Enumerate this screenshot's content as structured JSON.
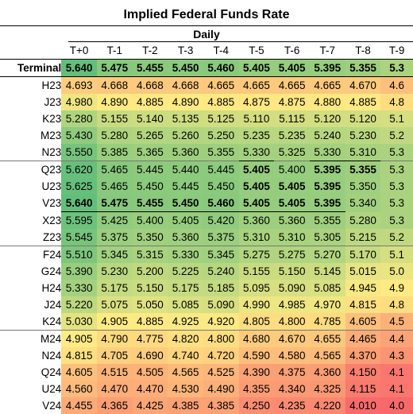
{
  "title": "Implied Federal Funds Rate",
  "subtitle": "Daily",
  "columns": [
    "T+0",
    "T-1",
    "T-2",
    "T-3",
    "T-4",
    "T-5",
    "T-6",
    "T-7",
    "T-8",
    "T-9"
  ],
  "rows": [
    {
      "label": "Terminal",
      "values": [
        "5.640",
        "5.475",
        "5.455",
        "5.450",
        "5.460",
        "5.405",
        "5.405",
        "5.395",
        "5.355",
        "5.3"
      ]
    },
    {
      "label": "H23",
      "values": [
        "4.693",
        "4.668",
        "4.668",
        "4.668",
        "4.665",
        "4.665",
        "4.665",
        "4.665",
        "4.670",
        "4.6"
      ]
    },
    {
      "label": "J23",
      "values": [
        "4.980",
        "4.890",
        "4.885",
        "4.890",
        "4.885",
        "4.875",
        "4.875",
        "4.880",
        "4.885",
        "4.8"
      ]
    },
    {
      "label": "K23",
      "values": [
        "5.280",
        "5.155",
        "5.140",
        "5.135",
        "5.125",
        "5.110",
        "5.115",
        "5.120",
        "5.120",
        "5.1"
      ]
    },
    {
      "label": "M23",
      "values": [
        "5.430",
        "5.280",
        "5.265",
        "5.260",
        "5.250",
        "5.235",
        "5.235",
        "5.240",
        "5.230",
        "5.2"
      ]
    },
    {
      "label": "N23",
      "values": [
        "5.550",
        "5.385",
        "5.365",
        "5.360",
        "5.355",
        "5.330",
        "5.325",
        "5.330",
        "5.310",
        "5.3"
      ]
    },
    {
      "label": "Q23",
      "values": [
        "5.620",
        "5.465",
        "5.445",
        "5.440",
        "5.445",
        "5.405",
        "5.400",
        "5.395",
        "5.355",
        "5.3"
      ]
    },
    {
      "label": "U23",
      "values": [
        "5.625",
        "5.465",
        "5.450",
        "5.445",
        "5.450",
        "5.405",
        "5.405",
        "5.395",
        "5.350",
        "5.3"
      ]
    },
    {
      "label": "V23",
      "values": [
        "5.640",
        "5.475",
        "5.455",
        "5.450",
        "5.460",
        "5.405",
        "5.405",
        "5.395",
        "5.340",
        "5.3"
      ]
    },
    {
      "label": "X23",
      "values": [
        "5.595",
        "5.425",
        "5.400",
        "5.405",
        "5.420",
        "5.360",
        "5.360",
        "5.355",
        "5.280",
        "5.3"
      ]
    },
    {
      "label": "Z23",
      "values": [
        "5.545",
        "5.375",
        "5.350",
        "5.360",
        "5.375",
        "5.310",
        "5.310",
        "5.305",
        "5.215",
        "5.2"
      ]
    },
    {
      "label": "F24",
      "values": [
        "5.510",
        "5.345",
        "5.315",
        "5.330",
        "5.345",
        "5.275",
        "5.275",
        "5.270",
        "5.170",
        "5.1"
      ]
    },
    {
      "label": "G24",
      "values": [
        "5.390",
        "5.230",
        "5.200",
        "5.225",
        "5.240",
        "5.155",
        "5.150",
        "5.145",
        "5.015",
        "5.0"
      ]
    },
    {
      "label": "H24",
      "values": [
        "5.330",
        "5.175",
        "5.150",
        "5.175",
        "5.185",
        "5.095",
        "5.090",
        "5.085",
        "4.945",
        "4.9"
      ]
    },
    {
      "label": "J24",
      "values": [
        "5.220",
        "5.075",
        "5.050",
        "5.085",
        "5.090",
        "4.990",
        "4.985",
        "4.970",
        "4.815",
        "4.8"
      ]
    },
    {
      "label": "K24",
      "values": [
        "5.030",
        "4.905",
        "4.885",
        "4.925",
        "4.920",
        "4.805",
        "4.800",
        "4.785",
        "4.605",
        "4.5"
      ]
    },
    {
      "label": "M24",
      "values": [
        "4.905",
        "4.790",
        "4.775",
        "4.820",
        "4.800",
        "4.680",
        "4.670",
        "4.655",
        "4.465",
        "4.4"
      ]
    },
    {
      "label": "N24",
      "values": [
        "4.815",
        "4.705",
        "4.690",
        "4.740",
        "4.720",
        "4.590",
        "4.580",
        "4.565",
        "4.370",
        "4.3"
      ]
    },
    {
      "label": "Q24",
      "values": [
        "4.605",
        "4.515",
        "4.505",
        "4.565",
        "4.525",
        "4.390",
        "4.375",
        "4.360",
        "4.150",
        "4.1"
      ]
    },
    {
      "label": "U24",
      "values": [
        "4.560",
        "4.470",
        "4.470",
        "4.530",
        "4.490",
        "4.355",
        "4.340",
        "4.325",
        "4.115",
        "4.1"
      ]
    },
    {
      "label": "V24",
      "values": [
        "4.455",
        "4.365",
        "4.425",
        "4.385",
        "4.385",
        "4.250",
        "4.235",
        "4.220",
        "4.010",
        "4.0"
      ]
    }
  ],
  "bold_cells": [
    [
      6,
      5
    ],
    [
      6,
      7
    ],
    [
      6,
      8
    ],
    [
      7,
      5
    ],
    [
      7,
      6
    ],
    [
      7,
      7
    ],
    [
      8,
      0
    ],
    [
      8,
      1
    ],
    [
      8,
      2
    ],
    [
      8,
      3
    ],
    [
      8,
      4
    ],
    [
      8,
      5
    ],
    [
      8,
      6
    ],
    [
      8,
      7
    ]
  ],
  "underline_cells": [
    [
      5,
      5
    ],
    [
      5,
      7
    ],
    [
      5,
      8
    ],
    [
      8,
      0
    ],
    [
      8,
      1
    ],
    [
      8,
      2
    ],
    [
      8,
      3
    ],
    [
      8,
      4
    ],
    [
      8,
      5
    ],
    [
      8,
      6
    ],
    [
      8,
      7
    ]
  ],
  "group_break_rows": [
    6,
    11,
    16
  ],
  "colors": {
    "low": "#f8696b",
    "mid": "#ffeb84",
    "high": "#63be7b"
  },
  "scale": {
    "min": 4.0,
    "mid": 4.9,
    "max": 5.64
  }
}
